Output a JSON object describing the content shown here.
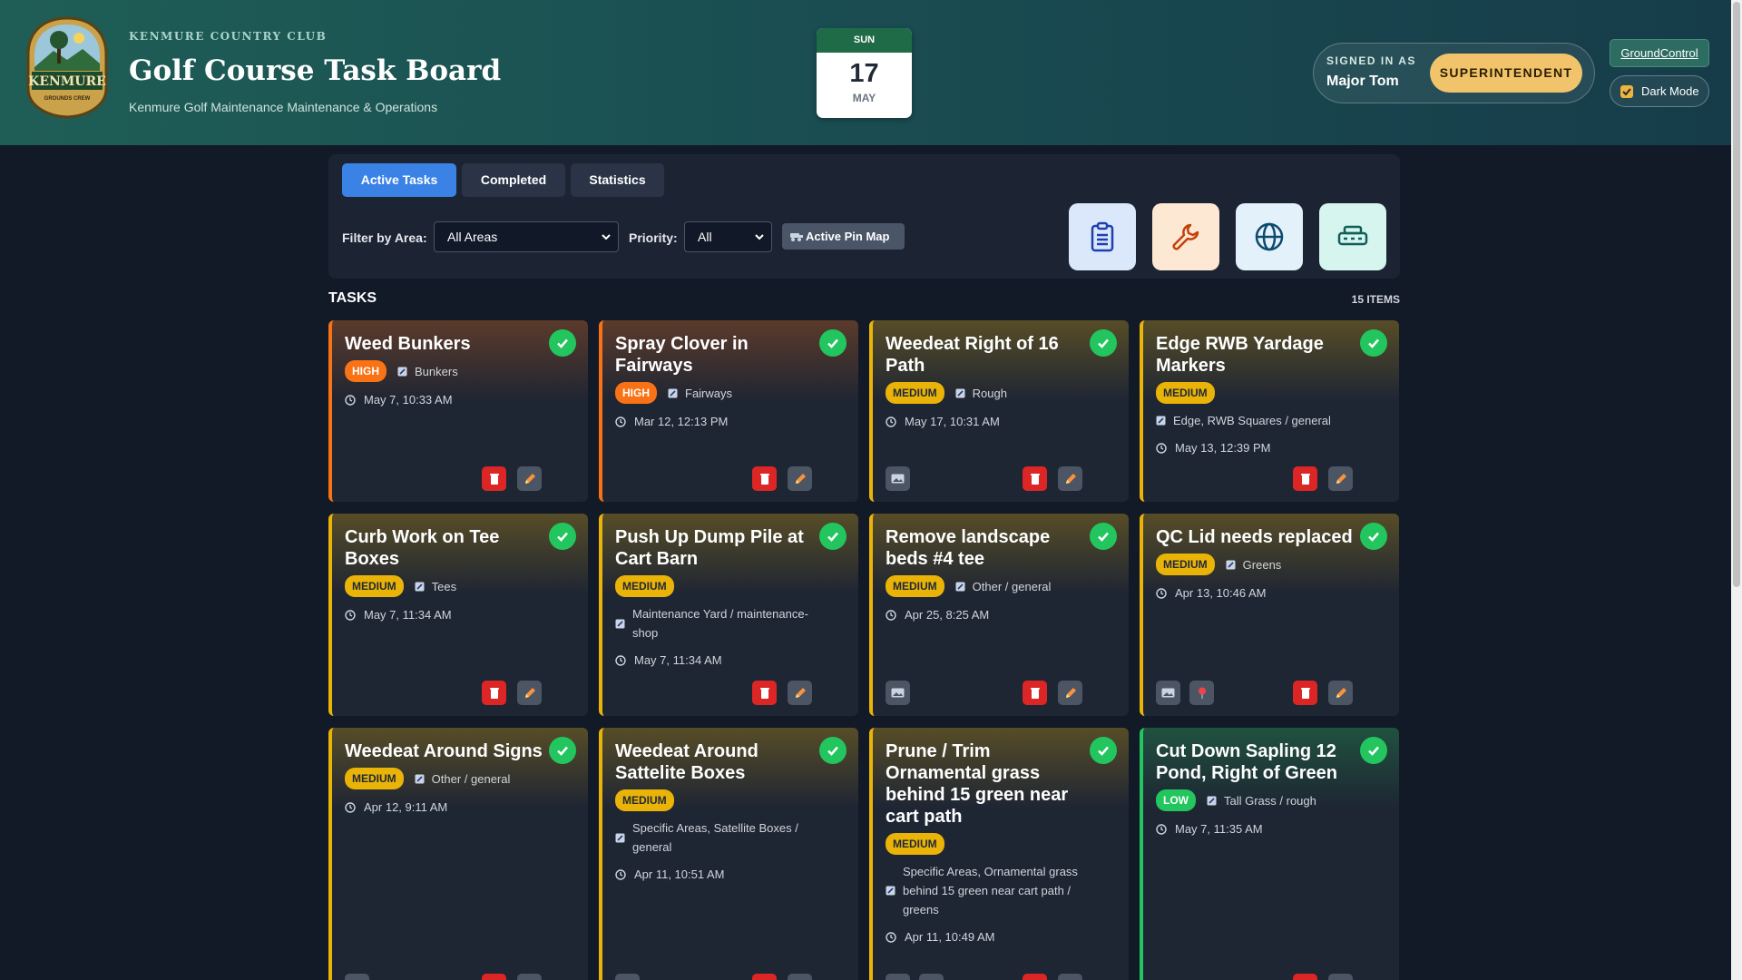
{
  "header": {
    "logo": {
      "name": "KENMURE",
      "tagline": "GROUNDS CREW"
    },
    "club": "KENMURE COUNTRY CLUB",
    "title": "Golf Course Task Board",
    "subtitle": "Kenmure Golf Maintenance Maintenance & Operations"
  },
  "date": {
    "weekday": "SUN",
    "day": 17,
    "month": "MAY"
  },
  "user": {
    "label": "SIGNED IN AS",
    "name": "Major Tom",
    "role": "SUPERINTENDENT"
  },
  "links": {
    "ground_control": "GroundControl",
    "dark_mode": "Dark Mode"
  },
  "tabs": [
    "Active Tasks",
    "Completed",
    "Statistics"
  ],
  "filters": {
    "area_label": "Filter by Area:",
    "area_value": "All Areas",
    "priority_label": "Priority:",
    "priority_value": "All",
    "pin_map": "Active Pin Map"
  },
  "tasks_heading": "TASKS",
  "item_count": "15 ITEMS",
  "tasks": [
    {
      "title": "Weed Bunkers",
      "priority": "HIGH",
      "color": "#f97316",
      "area": "Bunkers",
      "time": "May 7, 10:33 AM"
    },
    {
      "title": "Spray Clover in Fairways",
      "priority": "HIGH",
      "color": "#f97316",
      "area": "Fairways",
      "time": "Mar 12, 12:13 PM"
    },
    {
      "title": "Weedeat Right of 16 Path",
      "priority": "MEDIUM",
      "color": "#eab308",
      "area": "Rough",
      "time": "May 17, 10:31 AM"
    },
    {
      "title": "Edge RWB Yardage Markers",
      "priority": "MEDIUM",
      "color": "#eab308",
      "area": "Edge, RWB Squares / general",
      "time": "May 13, 12:39 PM"
    },
    {
      "title": "Curb Work on Tee Boxes",
      "priority": "MEDIUM",
      "color": "#eab308",
      "area": "Tees",
      "time": "May 7, 11:34 AM"
    },
    {
      "title": "Push Up Dump Pile at Cart Barn",
      "priority": "MEDIUM",
      "color": "#eab308",
      "area": "Maintenance Yard / maintenance-shop",
      "time": "May 7, 11:34 AM"
    },
    {
      "title": "Remove landscape beds #4 tee",
      "priority": "MEDIUM",
      "color": "#eab308",
      "area": "Other / general",
      "time": "Apr 25, 8:25 AM"
    },
    {
      "title": "QC Lid needs replaced",
      "priority": "MEDIUM",
      "color": "#eab308",
      "area": "Greens",
      "time": "Apr 13, 10:46 AM"
    },
    {
      "title": "Weedeat Around Signs",
      "priority": "MEDIUM",
      "color": "#eab308",
      "area": "Other / general",
      "time": "Apr 12, 9:11 AM"
    },
    {
      "title": "Weedeat Around Sattelite Boxes",
      "priority": "MEDIUM",
      "color": "#eab308",
      "area": "Specific Areas, Satellite Boxes / general",
      "time": "Apr 11, 10:51 AM"
    },
    {
      "title": "Prune / Trim Ornamental grass behind 15 green near cart path",
      "priority": "MEDIUM",
      "color": "#eab308",
      "area": "Specific Areas, Ornamental grass behind 15 green near cart path / greens",
      "time": "Apr 11, 10:49 AM"
    },
    {
      "title": "Cut Down Sapling 12 Pond, Right of Green",
      "priority": "LOW",
      "color": "#22c55e",
      "area": "Tall Grass / rough",
      "time": "May 7, 11:35 AM"
    }
  ]
}
